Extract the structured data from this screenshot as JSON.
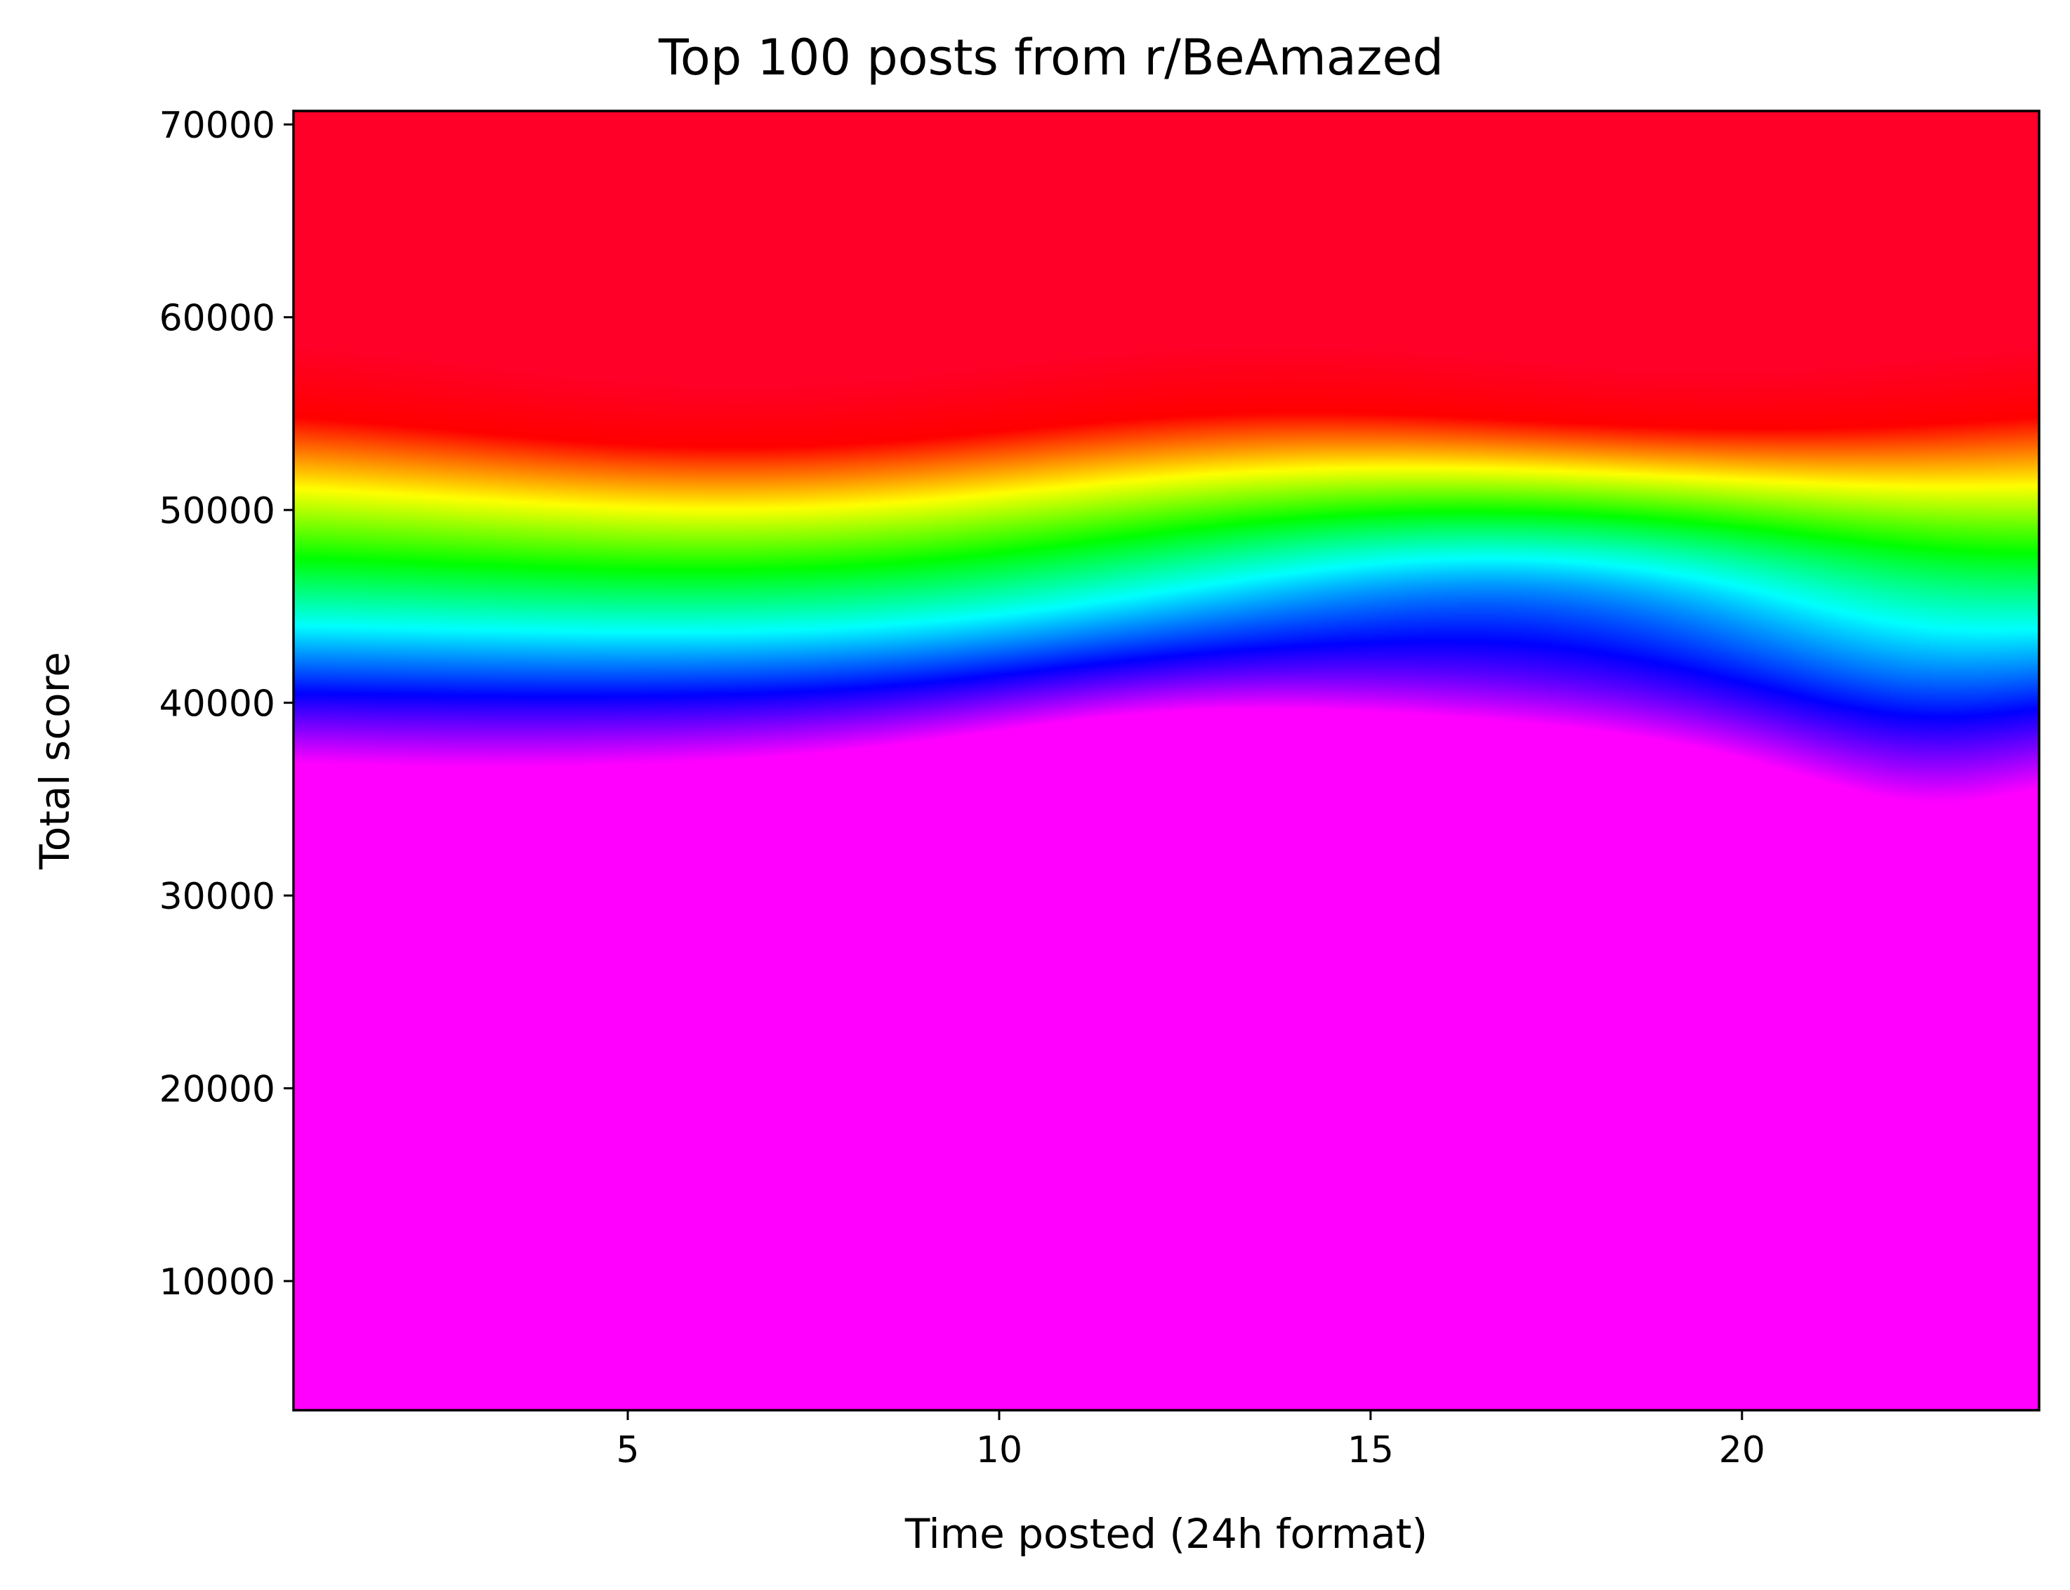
{
  "chart_data": {
    "type": "heatmap",
    "title": "Top 100 posts from r/BeAmazed",
    "xlabel": "Time posted (24h format)",
    "ylabel": "Total score",
    "xlim": [
      0.5,
      24
    ],
    "ylim": [
      3300,
      70700
    ],
    "xticks": [
      5,
      10,
      15,
      20
    ],
    "yticks": [
      10000,
      20000,
      30000,
      40000,
      50000,
      60000,
      70000
    ],
    "colormap": "gist_rainbow",
    "colormap_stops": [
      "#ff0029",
      "#ff0000",
      "#ffff00",
      "#00ff00",
      "#00ffff",
      "#0000ff",
      "#ff00ff"
    ],
    "grid": false,
    "legend": "none",
    "density_peaks": [
      {
        "x": 12.8,
        "y": 23000,
        "level": "high"
      },
      {
        "x": 13.8,
        "y": 8000,
        "level": "high"
      }
    ]
  }
}
